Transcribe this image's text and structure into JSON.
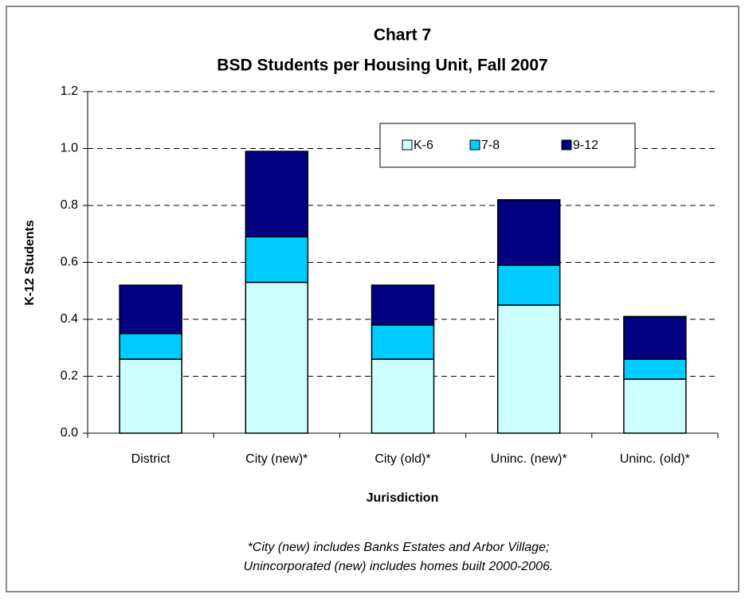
{
  "chart_data": {
    "type": "stacked_bar",
    "title": [
      "Chart 7",
      "BSD Students per Housing Unit, Fall 2007"
    ],
    "x_label": "Jurisdiction",
    "y_label": "K-12 Students",
    "categories": [
      "District",
      "City (new)*",
      "City (old)*",
      "Uninc. (new)*",
      "Uninc. (old)*"
    ],
    "series": [
      {
        "name": "K-6",
        "color": "#ccffff",
        "values": [
          0.26,
          0.53,
          0.26,
          0.45,
          0.19
        ]
      },
      {
        "name": "7-8",
        "color": "#00ccff",
        "values": [
          0.09,
          0.16,
          0.12,
          0.14,
          0.07
        ]
      },
      {
        "name": "9-12",
        "color": "#000080",
        "values": [
          0.17,
          0.3,
          0.14,
          0.23,
          0.15
        ]
      }
    ],
    "ylim": [
      0,
      1.2
    ],
    "yticks": [
      {
        "value": 0,
        "label": "0.0"
      },
      0.2,
      0.4,
      0.6,
      0.8,
      {
        "value": 1,
        "label": "1.0"
      },
      1.2
    ],
    "grid": true,
    "notes": [
      "*City (new) includes Banks Estates and Arbor Village;",
      "Unincorporated (new) includes homes built 2000-2006."
    ]
  }
}
